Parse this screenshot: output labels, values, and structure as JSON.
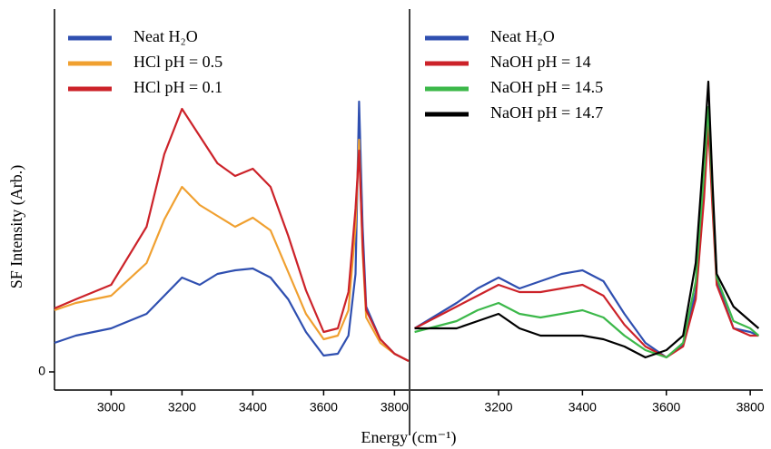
{
  "chart_data": [
    {
      "type": "line",
      "x_label": "Energy (cm⁻¹)",
      "y_label": "SF Intensity (Arb.)",
      "x": [
        2840,
        2900,
        3000,
        3100,
        3150,
        3200,
        3250,
        3300,
        3350,
        3400,
        3450,
        3500,
        3550,
        3600,
        3640,
        3670,
        3690,
        3700,
        3710,
        3720,
        3760,
        3800,
        3840
      ],
      "series": [
        {
          "name": "Neat H₂O",
          "color": "#2f4fb0",
          "values": [
            0.08,
            0.1,
            0.12,
            0.16,
            0.21,
            0.26,
            0.24,
            0.27,
            0.28,
            0.285,
            0.26,
            0.2,
            0.11,
            0.045,
            0.05,
            0.1,
            0.27,
            0.745,
            0.4,
            0.18,
            0.09,
            0.05,
            0.03
          ]
        },
        {
          "name": "HCl  pH = 0.5",
          "color": "#f0a030",
          "values": [
            0.17,
            0.19,
            0.21,
            0.3,
            0.42,
            0.51,
            0.46,
            0.43,
            0.4,
            0.425,
            0.39,
            0.275,
            0.16,
            0.09,
            0.1,
            0.17,
            0.4,
            0.64,
            0.33,
            0.15,
            0.08,
            0.05,
            0.03
          ]
        },
        {
          "name": "HCl  pH = 0.1",
          "color": "#cc2229",
          "values": [
            0.175,
            0.2,
            0.24,
            0.4,
            0.6,
            0.725,
            0.65,
            0.575,
            0.54,
            0.56,
            0.51,
            0.375,
            0.225,
            0.11,
            0.12,
            0.22,
            0.45,
            0.61,
            0.35,
            0.17,
            0.09,
            0.05,
            0.03
          ]
        }
      ],
      "xlim": [
        2840,
        3840
      ],
      "xticks": [
        3000,
        3200,
        3400,
        3600,
        3800
      ],
      "ylim": [
        -0.05,
        1.0
      ],
      "yticks": [
        0
      ]
    },
    {
      "type": "line",
      "x": [
        3000,
        3100,
        3150,
        3200,
        3250,
        3300,
        3350,
        3400,
        3450,
        3500,
        3550,
        3600,
        3640,
        3670,
        3690,
        3700,
        3710,
        3720,
        3760,
        3800,
        3820
      ],
      "series": [
        {
          "name": "Neat H₂O",
          "color": "#2f4fb0",
          "values": [
            0.12,
            0.19,
            0.23,
            0.26,
            0.23,
            0.25,
            0.27,
            0.28,
            0.25,
            0.16,
            0.08,
            0.04,
            0.075,
            0.22,
            0.52,
            0.71,
            0.47,
            0.25,
            0.12,
            0.11,
            0.1
          ]
        },
        {
          "name": "NaOH  pH = 14",
          "color": "#cc2229",
          "values": [
            0.12,
            0.18,
            0.21,
            0.24,
            0.22,
            0.22,
            0.23,
            0.24,
            0.21,
            0.13,
            0.07,
            0.04,
            0.07,
            0.2,
            0.48,
            0.68,
            0.45,
            0.24,
            0.12,
            0.1,
            0.1
          ]
        },
        {
          "name": "NaOH  pH = 14.5",
          "color": "#3cb84a",
          "values": [
            0.11,
            0.14,
            0.17,
            0.19,
            0.16,
            0.15,
            0.16,
            0.17,
            0.15,
            0.1,
            0.06,
            0.04,
            0.08,
            0.25,
            0.55,
            0.73,
            0.5,
            0.26,
            0.14,
            0.12,
            0.1
          ]
        },
        {
          "name": "NaOH  pH = 14.7",
          "color": "#000000",
          "values": [
            0.12,
            0.12,
            0.14,
            0.16,
            0.12,
            0.1,
            0.1,
            0.1,
            0.09,
            0.07,
            0.04,
            0.06,
            0.1,
            0.3,
            0.62,
            0.8,
            0.52,
            0.27,
            0.18,
            0.14,
            0.12
          ]
        }
      ],
      "xlim": [
        2990,
        3830
      ],
      "xticks": [
        3200,
        3400,
        3600,
        3800
      ],
      "ylim": [
        -0.05,
        1.0
      ]
    }
  ]
}
